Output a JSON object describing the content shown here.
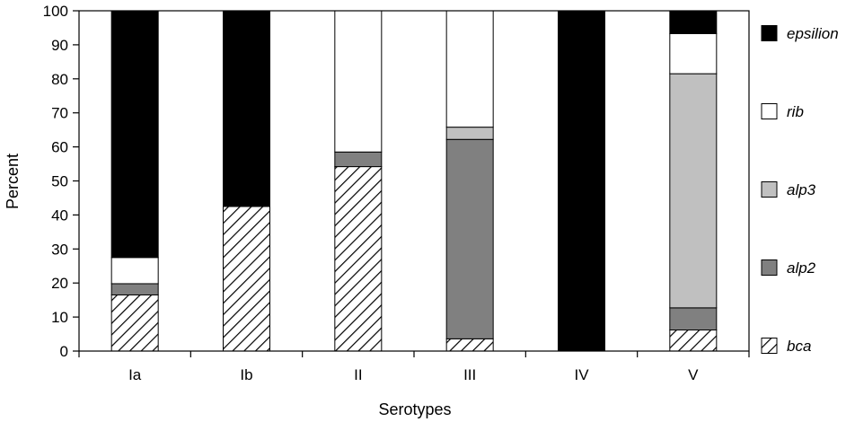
{
  "chart_data": {
    "type": "bar",
    "stacked": true,
    "title": "",
    "xlabel": "Serotypes",
    "ylabel": "Percent",
    "ylim": [
      0,
      100
    ],
    "yticks": [
      0,
      10,
      20,
      30,
      40,
      50,
      60,
      70,
      80,
      90,
      100
    ],
    "grid": false,
    "legend_position": "right",
    "categories": [
      "Ia",
      "Ib",
      "II",
      "III",
      "IV",
      "V"
    ],
    "series": [
      {
        "name": "bca",
        "values": [
          16.5,
          42.5,
          54.2,
          3.6,
          0,
          6.2
        ],
        "color": "#ffffff",
        "pattern": "diagonal-hatch"
      },
      {
        "name": "alp2",
        "values": [
          3.3,
          0,
          4.3,
          58.6,
          0,
          6.5
        ],
        "color": "#808080",
        "pattern": "solid"
      },
      {
        "name": "alp3",
        "values": [
          0,
          0,
          0,
          3.6,
          0,
          68.8
        ],
        "color": "#c0c0c0",
        "pattern": "solid"
      },
      {
        "name": "rib",
        "values": [
          7.7,
          0,
          41.5,
          34.2,
          0,
          11.8
        ],
        "color": "#ffffff",
        "pattern": "solid"
      },
      {
        "name": "epsilion",
        "values": [
          72.5,
          57.5,
          0,
          0,
          100,
          6.7
        ],
        "color": "#000000",
        "pattern": "solid"
      }
    ]
  }
}
